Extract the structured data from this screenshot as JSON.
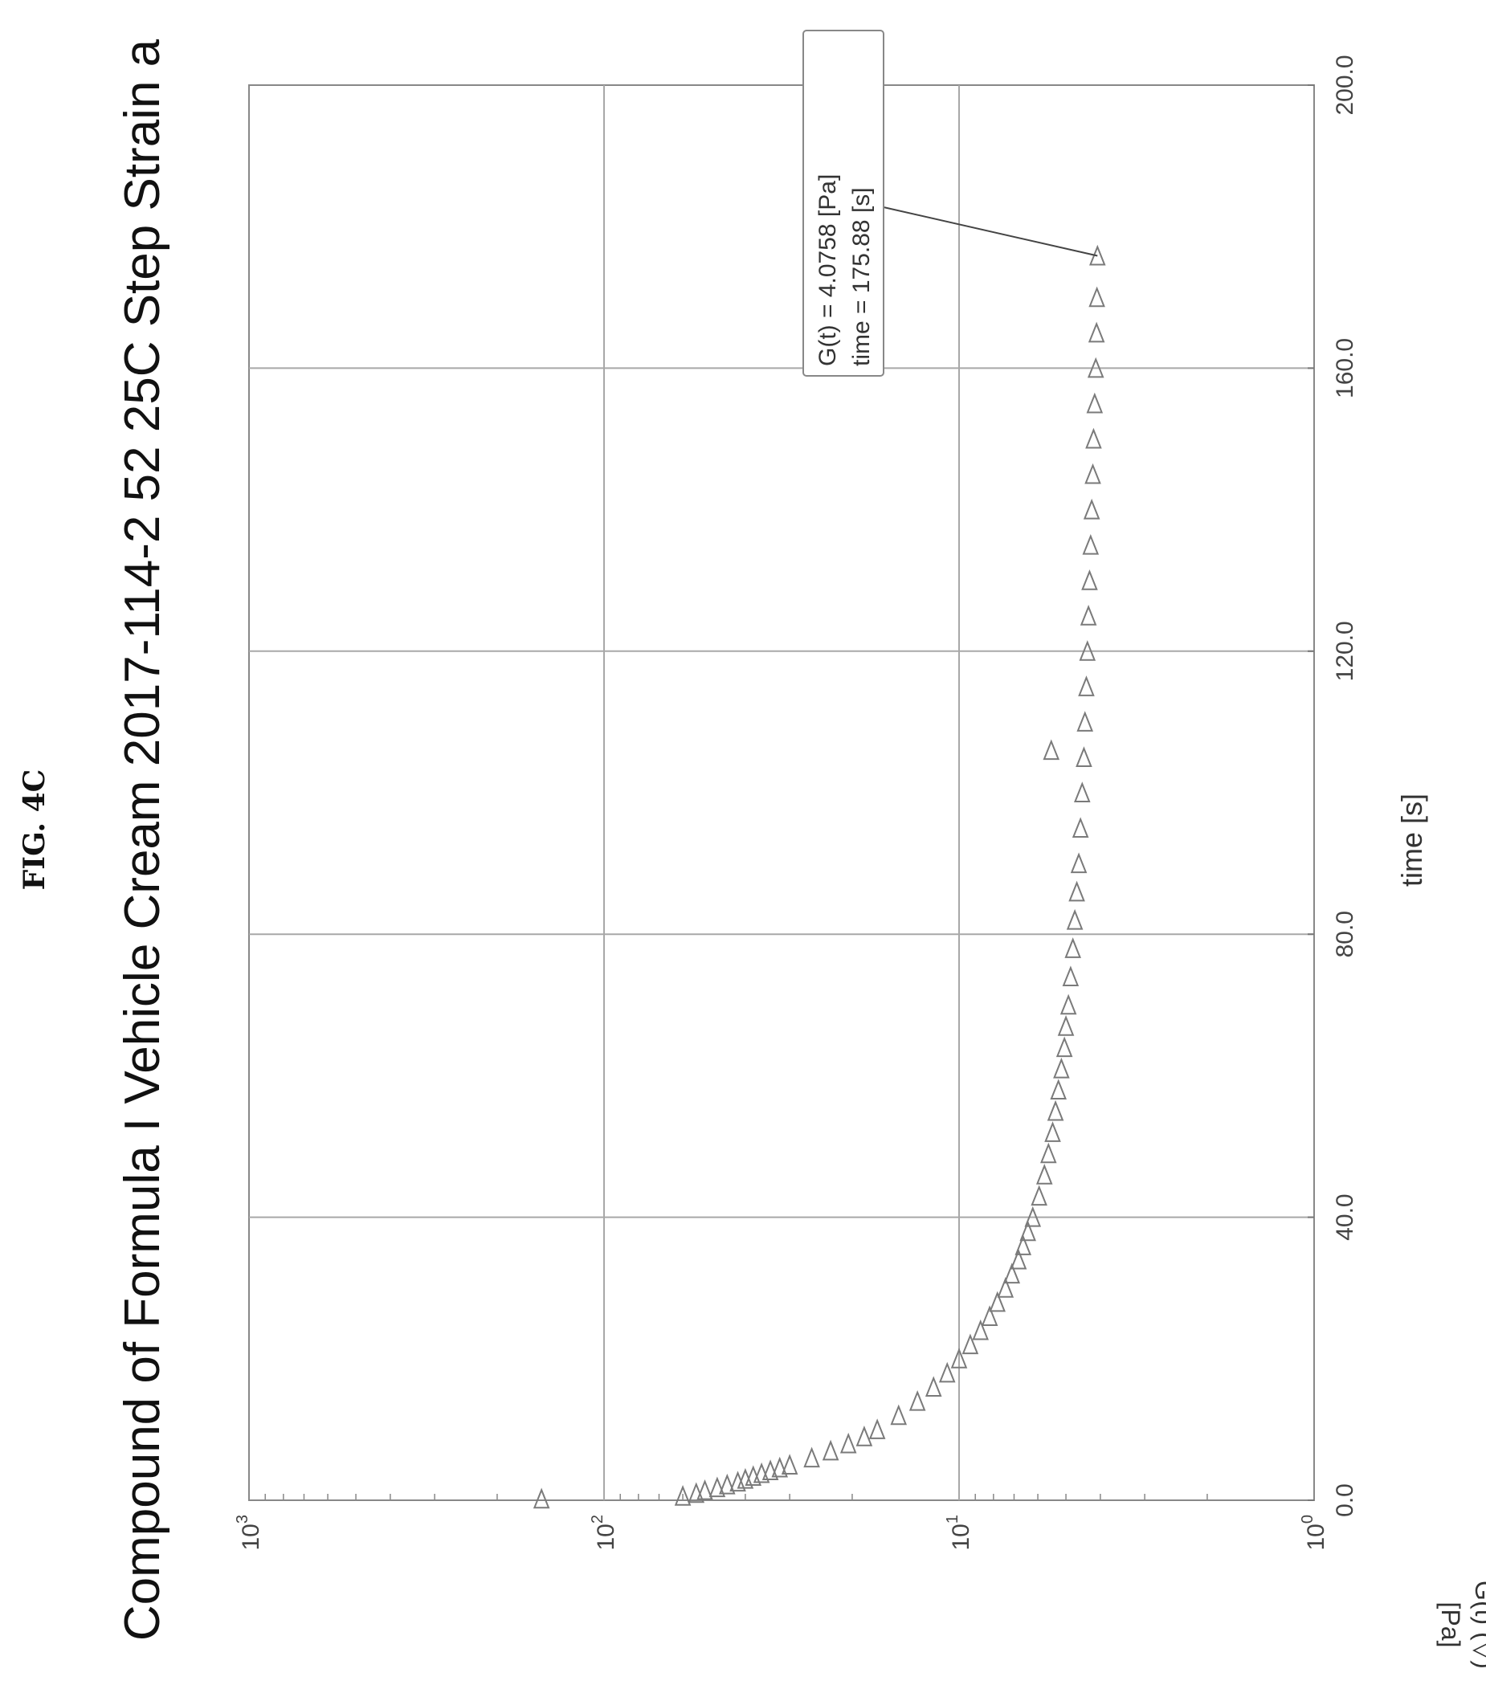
{
  "figure_label": "FIG. 4C",
  "chart_data": {
    "type": "scatter",
    "title": "Compound of Formula I Vehicle Cream 2017-114-2 52 25C Step Strain a",
    "xlabel": "time [s]",
    "ylabel_line1": "G(t) (▽)",
    "ylabel_line2": "[Pa]",
    "xlim": [
      0,
      200
    ],
    "ylim": [
      1,
      1000
    ],
    "yscale": "log",
    "grid": true,
    "marker": "triangle",
    "marker_color": "#7a7a7a",
    "x_ticks": [
      0,
      40,
      80,
      120,
      160,
      200
    ],
    "x_tick_labels": [
      "0.0",
      "40.0",
      "80.0",
      "120.0",
      "160.0",
      "200.0"
    ],
    "y_ticks": [
      1,
      10,
      100,
      1000
    ],
    "y_tick_labels": [
      {
        "base": "10",
        "exp": "0"
      },
      {
        "base": "10",
        "exp": "1"
      },
      {
        "base": "10",
        "exp": "2"
      },
      {
        "base": "10",
        "exp": "3"
      }
    ],
    "series": [
      {
        "x": [
          0.2,
          0.6,
          1.0,
          1.4,
          1.8,
          2.2,
          2.6,
          3.0,
          3.4,
          3.8,
          4.2,
          4.6,
          5.0,
          6,
          7,
          8,
          9,
          10,
          12,
          14,
          16,
          18,
          20,
          22,
          24,
          26,
          28,
          30,
          32,
          34,
          36,
          38,
          40,
          43,
          46,
          49,
          52,
          55,
          58,
          61,
          64,
          67,
          70,
          74,
          78,
          82,
          86,
          90,
          95,
          100,
          105,
          106,
          110,
          115,
          120,
          125,
          130,
          135,
          140,
          145,
          150,
          155,
          160,
          165,
          170,
          175.88
        ],
        "y": [
          150,
          60,
          55,
          52,
          48,
          45,
          42,
          40,
          38,
          36,
          34,
          32,
          30,
          26,
          23,
          20.5,
          18.5,
          17,
          14.8,
          13.1,
          11.8,
          10.8,
          10.0,
          9.3,
          8.7,
          8.2,
          7.8,
          7.4,
          7.1,
          6.8,
          6.6,
          6.4,
          6.2,
          5.95,
          5.75,
          5.6,
          5.45,
          5.35,
          5.25,
          5.15,
          5.05,
          5.0,
          4.92,
          4.85,
          4.78,
          4.72,
          4.66,
          4.6,
          4.55,
          4.5,
          4.45,
          5.5,
          4.42,
          4.38,
          4.35,
          4.32,
          4.29,
          4.26,
          4.23,
          4.2,
          4.18,
          4.15,
          4.12,
          4.1,
          4.09,
          4.0758
        ]
      }
    ],
    "annotation": {
      "line1": "G(t) = 4.0758 [Pa]",
      "line2": "time = 175.88 [s]",
      "point": {
        "x": 175.88,
        "y": 4.0758
      }
    }
  }
}
